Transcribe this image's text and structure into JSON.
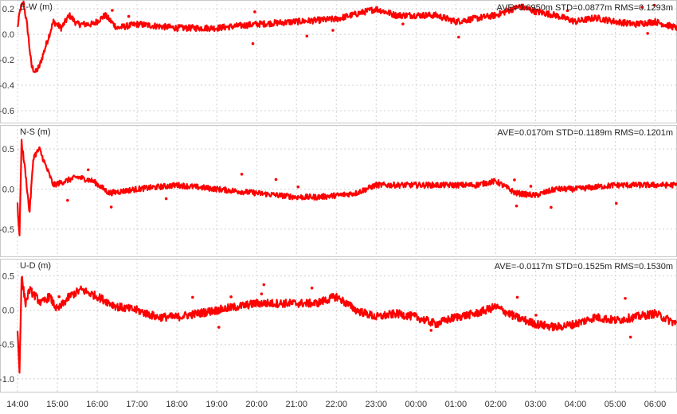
{
  "chart_data": {
    "type": "line",
    "series_color": "#ff0000",
    "grid": true,
    "x_tick_labels": [
      "14:00",
      "15:00",
      "16:00",
      "17:00",
      "18:00",
      "19:00",
      "20:00",
      "21:00",
      "22:00",
      "23:00",
      "00:00",
      "01:00",
      "02:00",
      "03:00",
      "04:00",
      "05:00",
      "06:00"
    ],
    "x_range_hours": [
      0,
      16.55
    ],
    "panels": [
      {
        "ylabel": "E-W (m)",
        "stats": "AVE=0.0950m STD=0.0877m RMS=0.1293m",
        "ylim": [
          -0.7,
          0.27
        ],
        "y_ticks": [
          0.2,
          0.0,
          -0.2,
          -0.4,
          -0.6
        ],
        "y_tick_labels": [
          "0.2",
          "0.0",
          "-0.2",
          "-0.4",
          "-0.6"
        ],
        "keypoints": [
          [
            0.0,
            0.05
          ],
          [
            0.07,
            0.2
          ],
          [
            0.15,
            0.25
          ],
          [
            0.25,
            0.05
          ],
          [
            0.35,
            -0.25
          ],
          [
            0.45,
            -0.3
          ],
          [
            0.55,
            -0.25
          ],
          [
            0.7,
            -0.1
          ],
          [
            0.9,
            0.1
          ],
          [
            1.1,
            0.05
          ],
          [
            1.3,
            0.15
          ],
          [
            1.5,
            0.08
          ],
          [
            1.9,
            0.08
          ],
          [
            2.2,
            0.15
          ],
          [
            2.5,
            0.05
          ],
          [
            3.0,
            0.08
          ],
          [
            4.0,
            0.05
          ],
          [
            5.0,
            0.05
          ],
          [
            6.0,
            0.08
          ],
          [
            7.0,
            0.1
          ],
          [
            8.0,
            0.12
          ],
          [
            9.0,
            0.2
          ],
          [
            9.5,
            0.15
          ],
          [
            10.0,
            0.15
          ],
          [
            10.5,
            0.15
          ],
          [
            11.0,
            0.1
          ],
          [
            12.0,
            0.15
          ],
          [
            12.6,
            0.22
          ],
          [
            13.0,
            0.18
          ],
          [
            13.5,
            0.15
          ],
          [
            14.0,
            0.1
          ],
          [
            14.5,
            0.13
          ],
          [
            15.0,
            0.1
          ],
          [
            15.5,
            0.08
          ],
          [
            16.0,
            0.1
          ],
          [
            16.55,
            0.05
          ]
        ],
        "noise_amp": 0.025
      },
      {
        "ylabel": "N-S (m)",
        "stats": "AVE=0.0170m STD=0.1189m RMS=0.1201m",
        "ylim": [
          -0.85,
          0.8
        ],
        "y_ticks": [
          0.5,
          0.0,
          -0.5
        ],
        "y_tick_labels": [
          "0.5",
          "0.0",
          "-0.5"
        ],
        "keypoints": [
          [
            0.0,
            -0.2
          ],
          [
            0.05,
            -0.6
          ],
          [
            0.1,
            0.6
          ],
          [
            0.2,
            0.2
          ],
          [
            0.3,
            -0.3
          ],
          [
            0.4,
            0.4
          ],
          [
            0.55,
            0.5
          ],
          [
            0.7,
            0.3
          ],
          [
            0.9,
            0.05
          ],
          [
            1.2,
            0.1
          ],
          [
            1.5,
            0.15
          ],
          [
            1.9,
            0.1
          ],
          [
            2.3,
            -0.05
          ],
          [
            3.0,
            0.0
          ],
          [
            4.0,
            0.05
          ],
          [
            5.0,
            0.0
          ],
          [
            6.0,
            -0.05
          ],
          [
            7.0,
            -0.1
          ],
          [
            7.5,
            -0.1
          ],
          [
            8.0,
            -0.08
          ],
          [
            8.5,
            -0.05
          ],
          [
            9.0,
            0.05
          ],
          [
            10.0,
            0.05
          ],
          [
            10.5,
            0.05
          ],
          [
            11.0,
            0.05
          ],
          [
            11.5,
            0.05
          ],
          [
            12.0,
            0.1
          ],
          [
            12.5,
            -0.05
          ],
          [
            13.0,
            -0.08
          ],
          [
            13.5,
            0.0
          ],
          [
            14.0,
            0.0
          ],
          [
            15.0,
            0.05
          ],
          [
            16.0,
            0.05
          ],
          [
            16.55,
            0.05
          ]
        ],
        "noise_amp": 0.035
      },
      {
        "ylabel": "U-D (m)",
        "stats": "AVE=-0.0117m STD=0.1525m RMS=0.1530m",
        "ylim": [
          -1.2,
          0.75
        ],
        "y_ticks": [
          0.5,
          0.0,
          -0.5,
          -1.0
        ],
        "y_tick_labels": [
          "0.5",
          "0.0",
          "-0.5",
          "-1.0"
        ],
        "keypoints": [
          [
            0.0,
            -0.3
          ],
          [
            0.05,
            -0.9
          ],
          [
            0.1,
            0.5
          ],
          [
            0.2,
            0.1
          ],
          [
            0.3,
            0.3
          ],
          [
            0.45,
            0.2
          ],
          [
            0.6,
            0.1
          ],
          [
            0.8,
            0.2
          ],
          [
            1.0,
            0.0
          ],
          [
            1.3,
            0.2
          ],
          [
            1.6,
            0.3
          ],
          [
            2.0,
            0.2
          ],
          [
            2.5,
            0.05
          ],
          [
            3.0,
            0.0
          ],
          [
            3.5,
            -0.1
          ],
          [
            4.0,
            -0.1
          ],
          [
            5.0,
            0.0
          ],
          [
            6.0,
            0.1
          ],
          [
            7.0,
            0.1
          ],
          [
            7.5,
            0.1
          ],
          [
            8.0,
            0.2
          ],
          [
            8.5,
            0.0
          ],
          [
            9.0,
            -0.1
          ],
          [
            9.5,
            -0.05
          ],
          [
            10.0,
            -0.1
          ],
          [
            10.5,
            -0.2
          ],
          [
            11.0,
            -0.1
          ],
          [
            11.5,
            -0.05
          ],
          [
            12.0,
            0.05
          ],
          [
            12.5,
            -0.1
          ],
          [
            13.0,
            -0.2
          ],
          [
            13.5,
            -0.25
          ],
          [
            14.0,
            -0.2
          ],
          [
            14.5,
            -0.1
          ],
          [
            15.0,
            -0.15
          ],
          [
            15.5,
            -0.1
          ],
          [
            16.0,
            -0.05
          ],
          [
            16.55,
            -0.2
          ]
        ],
        "noise_amp": 0.06
      }
    ]
  }
}
